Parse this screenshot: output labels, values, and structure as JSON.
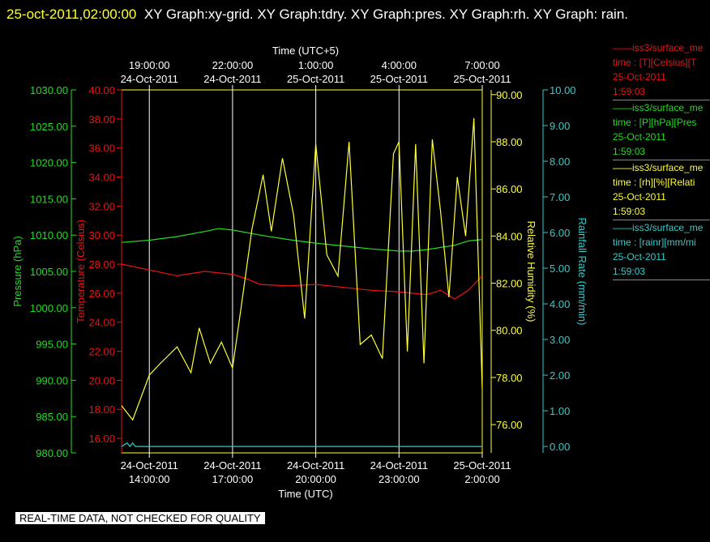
{
  "header": {
    "timestamp": "25-oct-2011,02:00:00",
    "title": "XY Graph:xy-grid.  XY Graph:tdry.  XY Graph:pres.  XY Graph:rh.  XY Graph: rain."
  },
  "notice": "REAL-TIME DATA, NOT CHECKED FOR QUALITY",
  "colors": {
    "pressure": "#22dd22",
    "temperature": "#ee1111",
    "humidity": "#ffff33",
    "rain": "#33cccc",
    "grid": "#ffffff",
    "frame": "#ffff33"
  },
  "legend": [
    {
      "line1": "iss3/surface_me",
      "line2": "time : [T][Celsius][T",
      "line3": "25-Oct-2011",
      "line4": "1:59:03",
      "color": "#ee1111"
    },
    {
      "line1": "iss3/surface_me",
      "line2": "time : [P][hPa][Pres",
      "line3": "25-Oct-2011",
      "line4": "1:59:03",
      "color": "#22dd22"
    },
    {
      "line1": "iss3/surface_me",
      "line2": "time : [rh][%][Relati",
      "line3": "25-Oct-2011",
      "line4": "1:59:03",
      "color": "#ffff33"
    },
    {
      "line1": "iss3/surface_me",
      "line2": "time : [rainr][mm/mi",
      "line3": "25-Oct-2011",
      "line4": "1:59:03",
      "color": "#33cccc"
    }
  ],
  "chart_data": {
    "type": "line",
    "x_top_label": "Time (UTC+5)",
    "x_bottom_label": "Time (UTC)",
    "x_range_hours": [
      13.0,
      26.0
    ],
    "top_ticks": [
      {
        "time": "19:00:00",
        "date": "24-Oct-2011",
        "utc_hour": 14
      },
      {
        "time": "22:00:00",
        "date": "24-Oct-2011",
        "utc_hour": 17
      },
      {
        "time": "1:00:00",
        "date": "25-Oct-2011",
        "utc_hour": 20
      },
      {
        "time": "4:00:00",
        "date": "25-Oct-2011",
        "utc_hour": 23
      },
      {
        "time": "7:00:00",
        "date": "25-Oct-2011",
        "utc_hour": 26
      }
    ],
    "bottom_ticks": [
      {
        "date": "24-Oct-2011",
        "time": "14:00:00",
        "utc_hour": 14
      },
      {
        "date": "24-Oct-2011",
        "time": "17:00:00",
        "utc_hour": 17
      },
      {
        "date": "24-Oct-2011",
        "time": "20:00:00",
        "utc_hour": 20
      },
      {
        "date": "24-Oct-2011",
        "time": "23:00:00",
        "utc_hour": 23
      },
      {
        "date": "25-Oct-2011",
        "time": "2:00:00",
        "utc_hour": 26
      }
    ],
    "axes": {
      "pressure": {
        "label": "Pressure (hPa)",
        "range": [
          980,
          1030
        ],
        "ticks": [
          "980.00",
          "985.00",
          "990.00",
          "995.00",
          "1000.00",
          "1005.00",
          "1010.00",
          "1015.00",
          "1020.00",
          "1025.00",
          "1030.00"
        ]
      },
      "temperature": {
        "label": "Temperature (Celsius)",
        "range": [
          15,
          40
        ],
        "ticks": [
          "16.00",
          "18.00",
          "20.00",
          "22.00",
          "24.00",
          "26.00",
          "28.00",
          "30.00",
          "32.00",
          "34.00",
          "36.00",
          "38.00",
          "40.00"
        ]
      },
      "humidity": {
        "label": "Relative Humidity (%)",
        "range": [
          74.8,
          90.2
        ],
        "ticks": [
          "76.00",
          "78.00",
          "80.00",
          "82.00",
          "84.00",
          "86.00",
          "88.00",
          "90.00"
        ]
      },
      "rain": {
        "label": "Rainfall Rate (mm/min)",
        "range": [
          -0.18,
          10.0
        ],
        "ticks": [
          "0.00",
          "1.00",
          "2.00",
          "3.00",
          "4.00",
          "5.00",
          "6.00",
          "7.00",
          "8.00",
          "9.00",
          "10.00"
        ]
      }
    },
    "series": [
      {
        "name": "Pressure",
        "axis": "pressure",
        "x": [
          13.0,
          14.0,
          15.0,
          16.0,
          16.5,
          17.0,
          18.0,
          19.0,
          20.0,
          21.0,
          22.0,
          23.0,
          23.5,
          24.0,
          25.0,
          25.5,
          26.0
        ],
        "y": [
          1009.0,
          1009.3,
          1009.8,
          1010.5,
          1010.9,
          1010.7,
          1010.0,
          1009.4,
          1008.9,
          1008.5,
          1008.1,
          1007.8,
          1007.8,
          1008.0,
          1008.6,
          1009.2,
          1009.4
        ]
      },
      {
        "name": "Temperature",
        "axis": "temperature",
        "x": [
          13.0,
          14.0,
          15.0,
          16.0,
          17.0,
          17.5,
          18.0,
          19.0,
          20.0,
          21.0,
          22.0,
          23.0,
          24.0,
          24.5,
          25.0,
          25.5,
          26.0
        ],
        "y": [
          28.0,
          27.6,
          27.2,
          27.5,
          27.3,
          27.0,
          26.6,
          26.5,
          26.6,
          26.4,
          26.2,
          26.1,
          25.9,
          26.2,
          25.6,
          26.2,
          27.2
        ]
      },
      {
        "name": "Relative Humidity",
        "axis": "humidity",
        "x": [
          13.0,
          13.4,
          14.0,
          14.4,
          15.0,
          15.5,
          15.8,
          16.2,
          16.6,
          17.0,
          17.3,
          17.7,
          18.1,
          18.4,
          18.8,
          19.2,
          19.6,
          20.0,
          20.4,
          20.8,
          21.2,
          21.6,
          22.0,
          22.4,
          22.8,
          23.0,
          23.3,
          23.6,
          23.9,
          24.2,
          24.5,
          24.8,
          25.1,
          25.4,
          25.7,
          26.0
        ],
        "y": [
          76.8,
          76.2,
          78.1,
          78.6,
          79.3,
          78.2,
          80.1,
          78.6,
          79.5,
          78.4,
          80.9,
          84.3,
          86.6,
          84.2,
          87.3,
          84.9,
          80.5,
          87.9,
          83.2,
          82.3,
          88.0,
          79.4,
          79.8,
          78.8,
          87.5,
          88.0,
          79.1,
          87.9,
          78.6,
          88.1,
          85.0,
          81.4,
          86.5,
          84.0,
          89.0,
          77.5
        ]
      },
      {
        "name": "Rainfall Rate",
        "axis": "rain",
        "x": [
          13.0,
          13.2,
          13.3,
          13.4,
          13.5,
          26.0
        ],
        "y": [
          0.0,
          0.1,
          0.0,
          0.1,
          0.0,
          0.0
        ]
      }
    ]
  }
}
